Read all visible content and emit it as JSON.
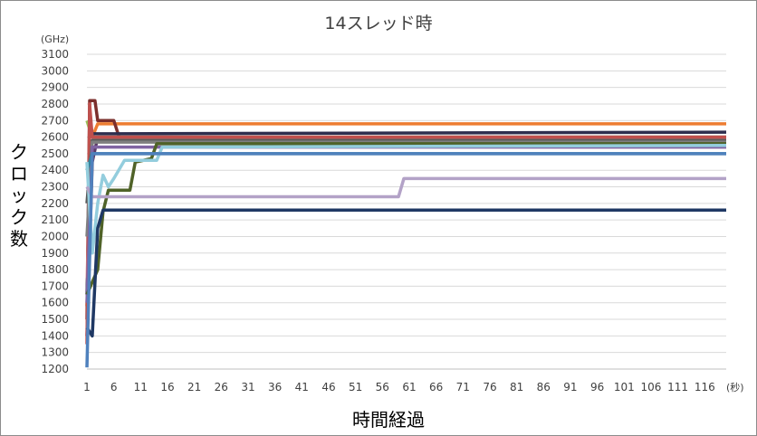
{
  "chart_data": {
    "type": "line",
    "title": "14スレッド時",
    "xlabel": "時間経過",
    "ylabel": "クロック数",
    "y_unit": "(GHz)",
    "x_unit": "(秒)",
    "ylim": [
      1200,
      3100
    ],
    "y_ticks": [
      "1200",
      "1300",
      "1400",
      "1500",
      "1600",
      "1700",
      "1800",
      "1900",
      "2000",
      "2100",
      "2200",
      "2300",
      "2400",
      "2500",
      "2600",
      "2700",
      "2800",
      "2900",
      "3000",
      "3100"
    ],
    "x_ticks": [
      "1",
      "6",
      "11",
      "16",
      "21",
      "26",
      "31",
      "36",
      "41",
      "46",
      "51",
      "56",
      "61",
      "66",
      "71",
      "76",
      "81",
      "86",
      "91",
      "96",
      "101",
      "106",
      "111",
      "116"
    ],
    "xlim": [
      1,
      120
    ],
    "grid": true,
    "series": [
      {
        "color": "#ed7d31",
        "points": [
          [
            1,
            1580
          ],
          [
            2,
            2600
          ],
          [
            3,
            2680
          ],
          [
            120,
            2680
          ]
        ]
      },
      {
        "color": "#7b2f2c",
        "points": [
          [
            1,
            1500
          ],
          [
            1.5,
            2820
          ],
          [
            2.5,
            2820
          ],
          [
            3,
            2700
          ],
          [
            6,
            2700
          ],
          [
            7,
            2600
          ],
          [
            120,
            2600
          ]
        ]
      },
      {
        "color": "#2e2e4e",
        "points": [
          [
            1,
            1650
          ],
          [
            2,
            2620
          ],
          [
            5,
            2620
          ],
          [
            120,
            2630
          ]
        ]
      },
      {
        "color": "#5b3a66",
        "points": [
          [
            1,
            1400
          ],
          [
            2,
            2450
          ],
          [
            3,
            2600
          ],
          [
            120,
            2600
          ]
        ]
      },
      {
        "color": "#9bbb59",
        "points": [
          [
            1,
            2700
          ],
          [
            2,
            2600
          ],
          [
            120,
            2600
          ]
        ]
      },
      {
        "color": "#e6b8b7",
        "points": [
          [
            1,
            1750
          ],
          [
            2,
            2600
          ],
          [
            120,
            2600
          ]
        ]
      },
      {
        "color": "#c0504d",
        "points": [
          [
            1,
            1350
          ],
          [
            1.5,
            2800
          ],
          [
            2,
            2600
          ],
          [
            120,
            2600
          ]
        ]
      },
      {
        "color": "#595959",
        "points": [
          [
            1,
            2200
          ],
          [
            2,
            2580
          ],
          [
            120,
            2580
          ]
        ]
      },
      {
        "color": "#7f7f7f",
        "points": [
          [
            1,
            2000
          ],
          [
            2,
            2570
          ],
          [
            120,
            2570
          ]
        ]
      },
      {
        "color": "#8064a2",
        "points": [
          [
            1,
            1600
          ],
          [
            2,
            2540
          ],
          [
            120,
            2540
          ]
        ]
      },
      {
        "color": "#31859c",
        "points": [
          [
            1,
            2400
          ],
          [
            2,
            2500
          ],
          [
            120,
            2500
          ]
        ]
      },
      {
        "color": "#4f6228",
        "points": [
          [
            1,
            1650
          ],
          [
            3,
            1800
          ],
          [
            4,
            2150
          ],
          [
            5,
            2280
          ],
          [
            9,
            2280
          ],
          [
            10,
            2450
          ],
          [
            13,
            2470
          ],
          [
            14,
            2560
          ],
          [
            120,
            2560
          ]
        ]
      },
      {
        "color": "#93cddd",
        "points": [
          [
            1,
            2450
          ],
          [
            2,
            1900
          ],
          [
            3,
            2200
          ],
          [
            4,
            2370
          ],
          [
            5,
            2300
          ],
          [
            6,
            2350
          ],
          [
            8,
            2460
          ],
          [
            14,
            2460
          ],
          [
            15,
            2540
          ],
          [
            120,
            2550
          ]
        ]
      },
      {
        "color": "#b3a2c7",
        "points": [
          [
            1,
            2300
          ],
          [
            2,
            2240
          ],
          [
            59,
            2240
          ],
          [
            60,
            2350
          ],
          [
            120,
            2350
          ]
        ]
      },
      {
        "color": "#1f3864",
        "points": [
          [
            1,
            1450
          ],
          [
            2,
            1400
          ],
          [
            3,
            2050
          ],
          [
            4,
            2160
          ],
          [
            120,
            2160
          ]
        ]
      },
      {
        "color": "#4f81bd",
        "points": [
          [
            1,
            1210
          ],
          [
            2,
            2500
          ],
          [
            120,
            2500
          ]
        ]
      }
    ]
  }
}
